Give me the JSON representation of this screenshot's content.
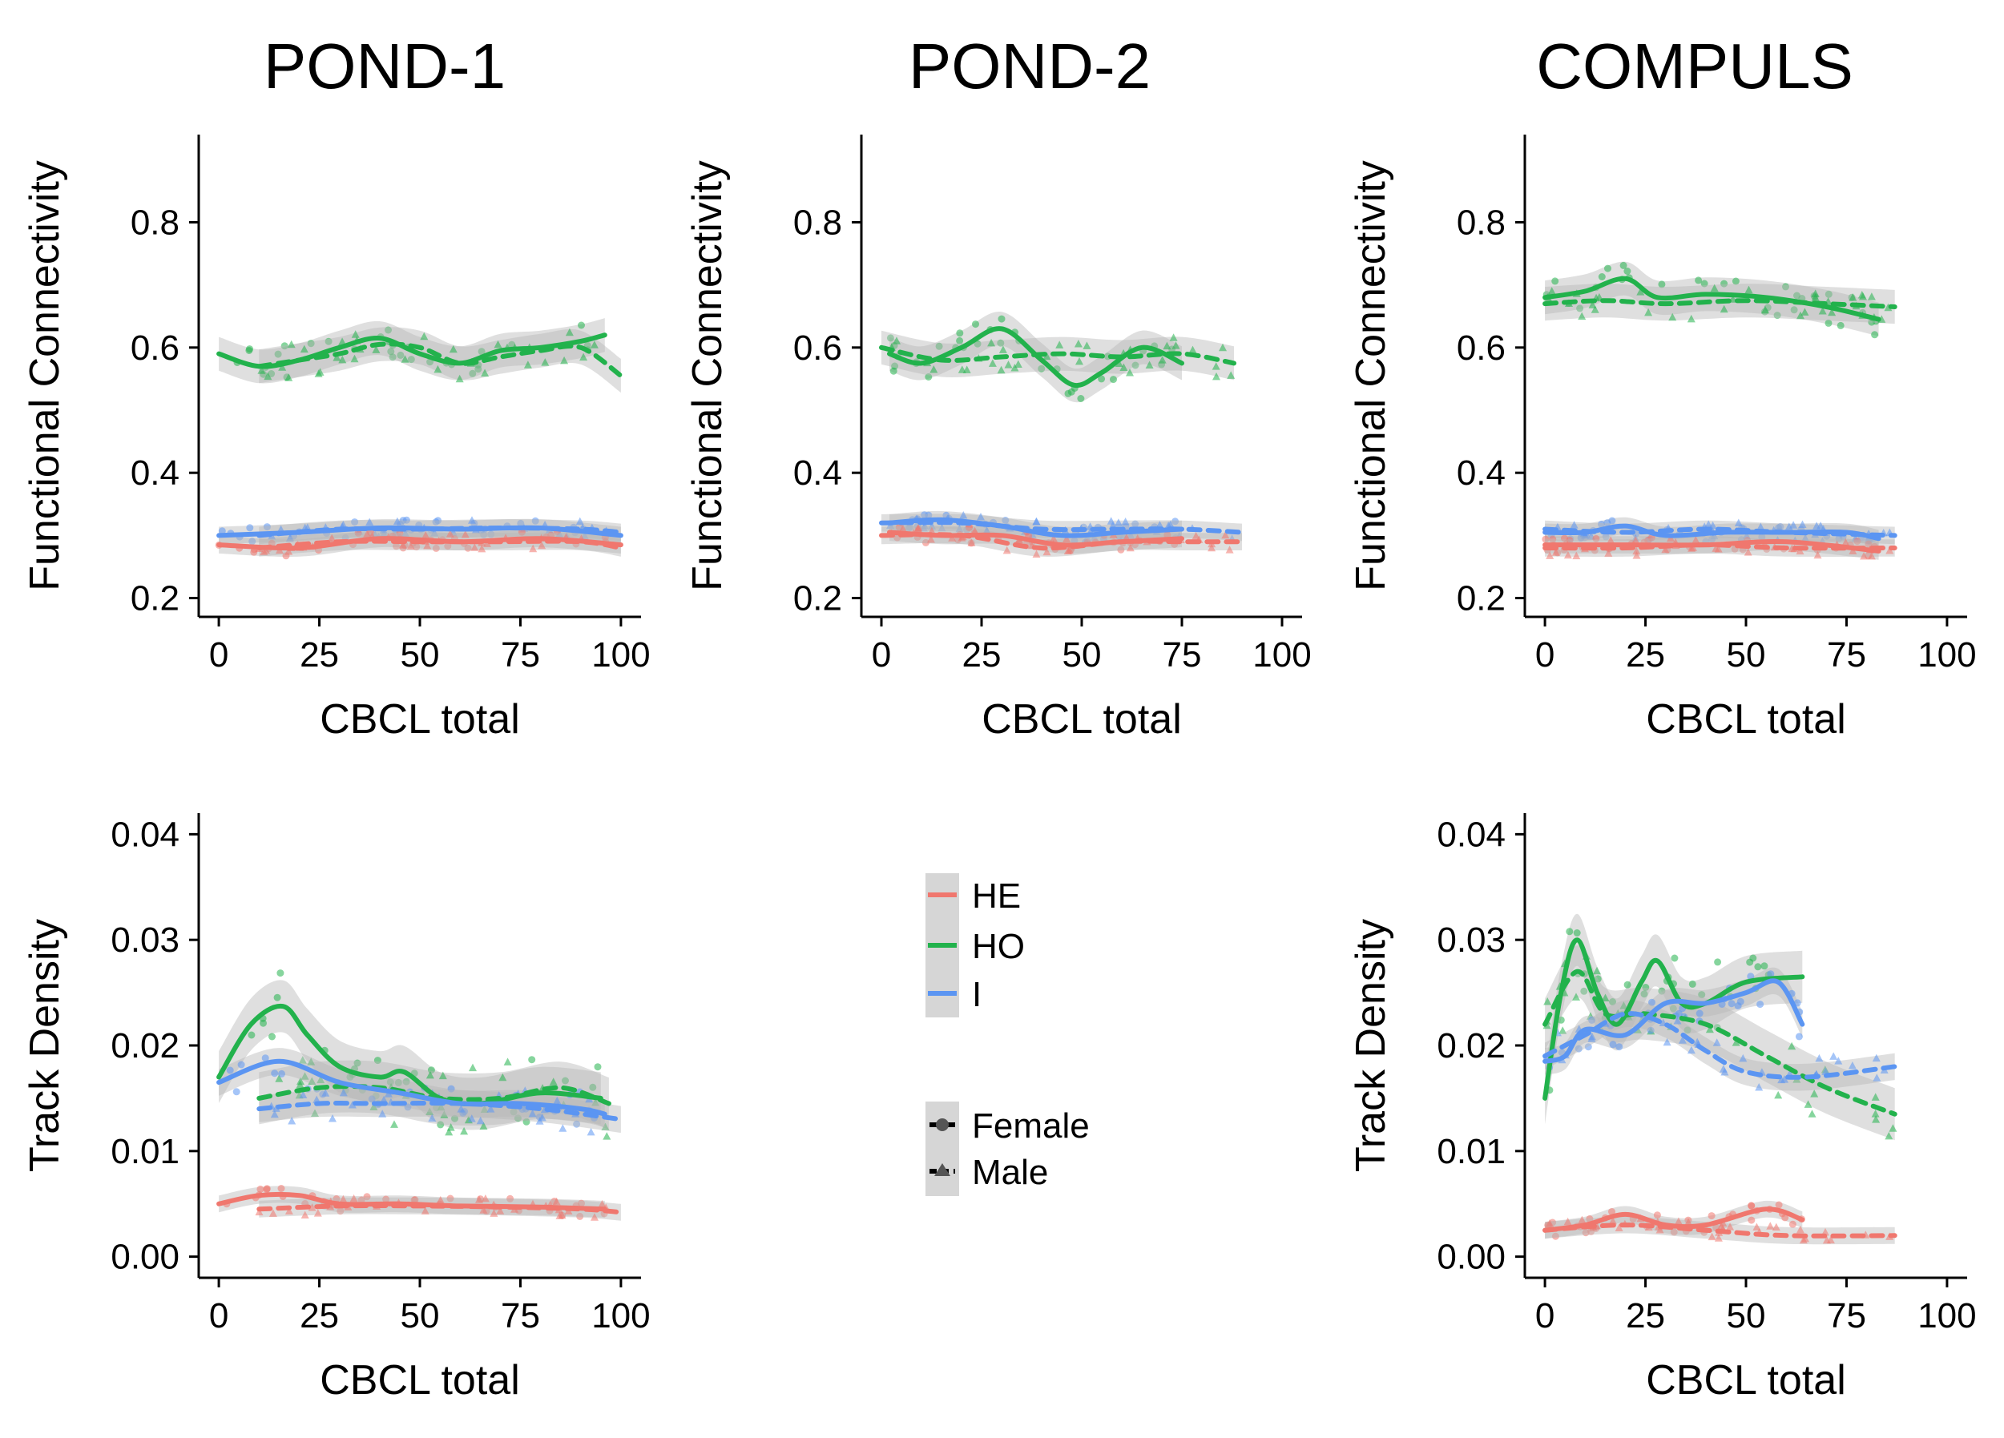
{
  "figure": {
    "titles": [
      "POND-1",
      "POND-2",
      "COMPULS"
    ],
    "legend_group": {
      "items": [
        {
          "label": "HE",
          "color": "#F0776E"
        },
        {
          "label": "HO",
          "color": "#22B24C"
        },
        {
          "label": "I",
          "color": "#5B95F2"
        }
      ]
    },
    "legend_sex": {
      "items": [
        {
          "label": "Female",
          "marker": "circle",
          "linetype": "solid"
        },
        {
          "label": "Male",
          "marker": "triangle",
          "linetype": "dashed"
        }
      ]
    }
  },
  "chart_data": [
    {
      "type": "line",
      "panel": "POND-1 functional connectivity",
      "title": "POND-1",
      "xlabel": "CBCL total",
      "ylabel": "Functional Connectivity",
      "xlim": [
        -5,
        105
      ],
      "ylim": [
        0.17,
        0.94
      ],
      "xticks": [
        0,
        25,
        50,
        75,
        100
      ],
      "yticks": [
        0.2,
        0.4,
        0.6,
        0.8
      ],
      "ytick_labels": [
        "0.2",
        "0.4",
        "0.6",
        "0.8"
      ],
      "series": [
        {
          "group": "HO",
          "sex": "Female",
          "x": [
            0,
            10,
            20,
            30,
            40,
            50,
            60,
            70,
            80,
            90,
            96
          ],
          "y": [
            0.59,
            0.57,
            0.58,
            0.6,
            0.615,
            0.59,
            0.575,
            0.595,
            0.6,
            0.61,
            0.62
          ]
        },
        {
          "group": "HO",
          "sex": "Male",
          "x": [
            10,
            20,
            30,
            40,
            50,
            60,
            70,
            80,
            90,
            100
          ],
          "y": [
            0.57,
            0.58,
            0.59,
            0.605,
            0.6,
            0.575,
            0.585,
            0.595,
            0.6,
            0.555
          ]
        },
        {
          "group": "I",
          "sex": "Female",
          "x": [
            0,
            20,
            40,
            60,
            80,
            100
          ],
          "y": [
            0.3,
            0.305,
            0.312,
            0.31,
            0.312,
            0.3
          ]
        },
        {
          "group": "I",
          "sex": "Male",
          "x": [
            10,
            30,
            50,
            70,
            90,
            100
          ],
          "y": [
            0.3,
            0.31,
            0.31,
            0.312,
            0.31,
            0.305
          ]
        },
        {
          "group": "HE",
          "sex": "Female",
          "x": [
            0,
            20,
            40,
            60,
            80,
            100
          ],
          "y": [
            0.285,
            0.28,
            0.295,
            0.29,
            0.295,
            0.285
          ]
        },
        {
          "group": "HE",
          "sex": "Male",
          "x": [
            10,
            30,
            50,
            70,
            90,
            100
          ],
          "y": [
            0.28,
            0.29,
            0.29,
            0.29,
            0.29,
            0.28
          ]
        }
      ]
    },
    {
      "type": "line",
      "panel": "POND-2 functional connectivity",
      "title": "POND-2",
      "xlabel": "CBCL total",
      "ylabel": "Functional Connectivity",
      "xlim": [
        -5,
        105
      ],
      "ylim": [
        0.17,
        0.94
      ],
      "xticks": [
        0,
        25,
        50,
        75,
        100
      ],
      "yticks": [
        0.2,
        0.4,
        0.6,
        0.8
      ],
      "ytick_labels": [
        "0.2",
        "0.4",
        "0.6",
        "0.8"
      ],
      "series": [
        {
          "group": "HO",
          "sex": "Female",
          "x": [
            2,
            10,
            20,
            30,
            40,
            48,
            55,
            65,
            75
          ],
          "y": [
            0.59,
            0.575,
            0.6,
            0.63,
            0.58,
            0.54,
            0.56,
            0.6,
            0.575
          ]
        },
        {
          "group": "HO",
          "sex": "Male",
          "x": [
            0,
            15,
            30,
            45,
            60,
            75,
            88
          ],
          "y": [
            0.6,
            0.58,
            0.585,
            0.59,
            0.585,
            0.59,
            0.575
          ]
        },
        {
          "group": "I",
          "sex": "Female",
          "x": [
            2,
            15,
            30,
            45,
            60,
            75
          ],
          "y": [
            0.32,
            0.325,
            0.315,
            0.3,
            0.305,
            0.31
          ]
        },
        {
          "group": "I",
          "sex": "Male",
          "x": [
            0,
            20,
            40,
            60,
            75,
            90
          ],
          "y": [
            0.32,
            0.32,
            0.31,
            0.31,
            0.31,
            0.305
          ]
        },
        {
          "group": "HE",
          "sex": "Female",
          "x": [
            2,
            15,
            30,
            45,
            60,
            75
          ],
          "y": [
            0.305,
            0.3,
            0.3,
            0.285,
            0.29,
            0.295
          ]
        },
        {
          "group": "HE",
          "sex": "Male",
          "x": [
            0,
            20,
            40,
            60,
            75,
            90
          ],
          "y": [
            0.3,
            0.3,
            0.28,
            0.29,
            0.29,
            0.29
          ]
        }
      ]
    },
    {
      "type": "line",
      "panel": "COMPULS functional connectivity",
      "title": "COMPULS",
      "xlabel": "CBCL total",
      "ylabel": "Functional Connectivity",
      "xlim": [
        -5,
        105
      ],
      "ylim": [
        0.17,
        0.94
      ],
      "xticks": [
        0,
        25,
        50,
        75,
        100
      ],
      "yticks": [
        0.2,
        0.4,
        0.6,
        0.8
      ],
      "ytick_labels": [
        "0.2",
        "0.4",
        "0.6",
        "0.8"
      ],
      "series": [
        {
          "group": "HO",
          "sex": "Female",
          "x": [
            0,
            10,
            20,
            28,
            40,
            55,
            70,
            83
          ],
          "y": [
            0.68,
            0.69,
            0.71,
            0.68,
            0.685,
            0.68,
            0.665,
            0.645
          ]
        },
        {
          "group": "HO",
          "sex": "Male",
          "x": [
            0,
            15,
            30,
            50,
            70,
            87
          ],
          "y": [
            0.67,
            0.675,
            0.67,
            0.675,
            0.67,
            0.665
          ]
        },
        {
          "group": "I",
          "sex": "Female",
          "x": [
            0,
            10,
            20,
            30,
            45,
            60,
            75,
            83
          ],
          "y": [
            0.305,
            0.305,
            0.315,
            0.3,
            0.305,
            0.305,
            0.305,
            0.295
          ]
        },
        {
          "group": "I",
          "sex": "Male",
          "x": [
            0,
            20,
            40,
            60,
            87
          ],
          "y": [
            0.31,
            0.305,
            0.31,
            0.305,
            0.3
          ]
        },
        {
          "group": "HE",
          "sex": "Female",
          "x": [
            0,
            20,
            40,
            60,
            83
          ],
          "y": [
            0.285,
            0.285,
            0.285,
            0.29,
            0.275
          ]
        },
        {
          "group": "HE",
          "sex": "Male",
          "x": [
            0,
            20,
            40,
            60,
            87
          ],
          "y": [
            0.28,
            0.28,
            0.285,
            0.28,
            0.28
          ]
        }
      ]
    },
    {
      "type": "line",
      "panel": "POND-1 track density",
      "xlabel": "CBCL total",
      "ylabel": "Track Density",
      "xlim": [
        -5,
        105
      ],
      "ylim": [
        -0.002,
        0.042
      ],
      "xticks": [
        0,
        25,
        50,
        75,
        100
      ],
      "yticks": [
        0,
        0.01,
        0.02,
        0.03,
        0.04
      ],
      "ytick_labels": [
        "0.00",
        "0.01",
        "0.02",
        "0.03",
        "0.04"
      ],
      "series": [
        {
          "group": "HO",
          "sex": "Female",
          "x": [
            0,
            8,
            16,
            22,
            30,
            40,
            46,
            55,
            65,
            80,
            95
          ],
          "y": [
            0.017,
            0.022,
            0.0237,
            0.021,
            0.018,
            0.017,
            0.0175,
            0.015,
            0.0145,
            0.0155,
            0.015
          ]
        },
        {
          "group": "HO",
          "sex": "Male",
          "x": [
            10,
            25,
            40,
            55,
            70,
            85,
            97
          ],
          "y": [
            0.015,
            0.016,
            0.016,
            0.015,
            0.015,
            0.016,
            0.0145
          ]
        },
        {
          "group": "I",
          "sex": "Female",
          "x": [
            0,
            15,
            30,
            45,
            60,
            75,
            90,
            96
          ],
          "y": [
            0.0165,
            0.0185,
            0.0165,
            0.0155,
            0.0145,
            0.0145,
            0.014,
            0.0135
          ]
        },
        {
          "group": "I",
          "sex": "Male",
          "x": [
            10,
            25,
            40,
            60,
            80,
            100
          ],
          "y": [
            0.014,
            0.0145,
            0.0145,
            0.0145,
            0.014,
            0.013
          ]
        },
        {
          "group": "HE",
          "sex": "Female",
          "x": [
            0,
            10,
            20,
            30,
            45,
            60,
            80,
            96
          ],
          "y": [
            0.005,
            0.0058,
            0.0058,
            0.005,
            0.005,
            0.0048,
            0.0047,
            0.0045
          ]
        },
        {
          "group": "HE",
          "sex": "Male",
          "x": [
            10,
            30,
            50,
            70,
            90,
            100
          ],
          "y": [
            0.0045,
            0.0048,
            0.0048,
            0.0047,
            0.0045,
            0.0042
          ]
        }
      ]
    },
    {
      "type": "line",
      "panel": "COMPULS track density",
      "xlabel": "CBCL total",
      "ylabel": "Track Density",
      "xlim": [
        -5,
        105
      ],
      "ylim": [
        -0.002,
        0.042
      ],
      "xticks": [
        0,
        25,
        50,
        75,
        100
      ],
      "yticks": [
        0,
        0.01,
        0.02,
        0.03,
        0.04
      ],
      "ytick_labels": [
        "0.00",
        "0.01",
        "0.02",
        "0.03",
        "0.04"
      ],
      "series": [
        {
          "group": "HO",
          "sex": "Female",
          "x": [
            0,
            4,
            8,
            13,
            18,
            24,
            28,
            34,
            40,
            50,
            64
          ],
          "y": [
            0.015,
            0.025,
            0.03,
            0.025,
            0.022,
            0.026,
            0.028,
            0.024,
            0.024,
            0.026,
            0.0265
          ]
        },
        {
          "group": "HO",
          "sex": "Male",
          "x": [
            0,
            8,
            15,
            25,
            40,
            55,
            70,
            87
          ],
          "y": [
            0.022,
            0.027,
            0.023,
            0.023,
            0.022,
            0.019,
            0.016,
            0.0135
          ]
        },
        {
          "group": "I",
          "sex": "Female",
          "x": [
            0,
            5,
            10,
            20,
            30,
            40,
            50,
            58,
            64
          ],
          "y": [
            0.0185,
            0.019,
            0.0215,
            0.021,
            0.024,
            0.024,
            0.025,
            0.026,
            0.022
          ]
        },
        {
          "group": "I",
          "sex": "Male",
          "x": [
            0,
            10,
            20,
            30,
            40,
            50,
            65,
            87
          ],
          "y": [
            0.019,
            0.021,
            0.023,
            0.022,
            0.0195,
            0.0175,
            0.017,
            0.018
          ]
        },
        {
          "group": "HE",
          "sex": "Female",
          "x": [
            0,
            10,
            20,
            30,
            40,
            55,
            64
          ],
          "y": [
            0.0025,
            0.003,
            0.004,
            0.003,
            0.003,
            0.0045,
            0.0035
          ]
        },
        {
          "group": "HE",
          "sex": "Male",
          "x": [
            0,
            20,
            40,
            60,
            87
          ],
          "y": [
            0.0025,
            0.003,
            0.0025,
            0.002,
            0.002
          ]
        }
      ]
    }
  ]
}
